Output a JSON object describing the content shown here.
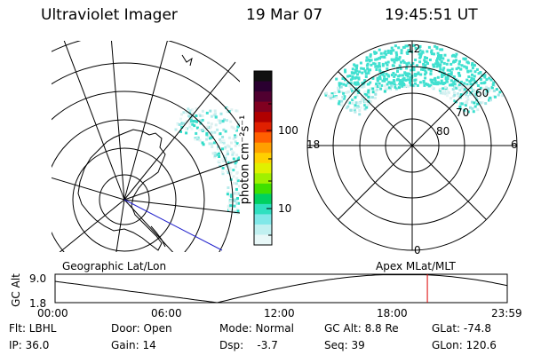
{
  "header": {
    "title": "Ultraviolet Imager",
    "date": "19 Mar 07",
    "time": "19:45:51 UT"
  },
  "colorbar": {
    "unit_label": "photon cm⁻²s⁻¹",
    "ticks": [
      "100",
      "10"
    ],
    "colors": [
      "#101010",
      "#2a0030",
      "#500030",
      "#800020",
      "#b00000",
      "#e02000",
      "#ff6000",
      "#ffa000",
      "#ffd000",
      "#e0f000",
      "#a0f000",
      "#40e000",
      "#00d060",
      "#30e0c0",
      "#80e8e8",
      "#c0f0f0",
      "#e8f8f8"
    ]
  },
  "polar_plot": {
    "mlt_labels": {
      "top": "12",
      "left": "18",
      "right": "6",
      "bottom": "0"
    },
    "lat_labels": [
      "60",
      "70",
      "80"
    ]
  },
  "panel_labels": {
    "left": "Geographic Lat/Lon",
    "right": "Apex  MLat/MLT"
  },
  "altitude_plot": {
    "axis_title": "GC Alt",
    "ytick_top": "9.0",
    "ytick_bottom": "1.8",
    "xticks": [
      "00:00",
      "06:00",
      "12:00",
      "18:00",
      "23:59"
    ],
    "marker_time_hours": 19.76,
    "marker_color": "#dd0000"
  },
  "status": {
    "flt": "Flt: LBHL",
    "ip": "IP: 36.0",
    "door": "Door: Open",
    "gain": "Gain: 14",
    "mode": "Mode: Normal",
    "dsp": "Dsp:    -3.7",
    "gc_alt": "GC Alt: 8.8 Re",
    "seq": "Seq: 39",
    "glat": "GLat: -74.8",
    "glon": "GLon: 120.6"
  },
  "aurora_color": "#40e0d0"
}
